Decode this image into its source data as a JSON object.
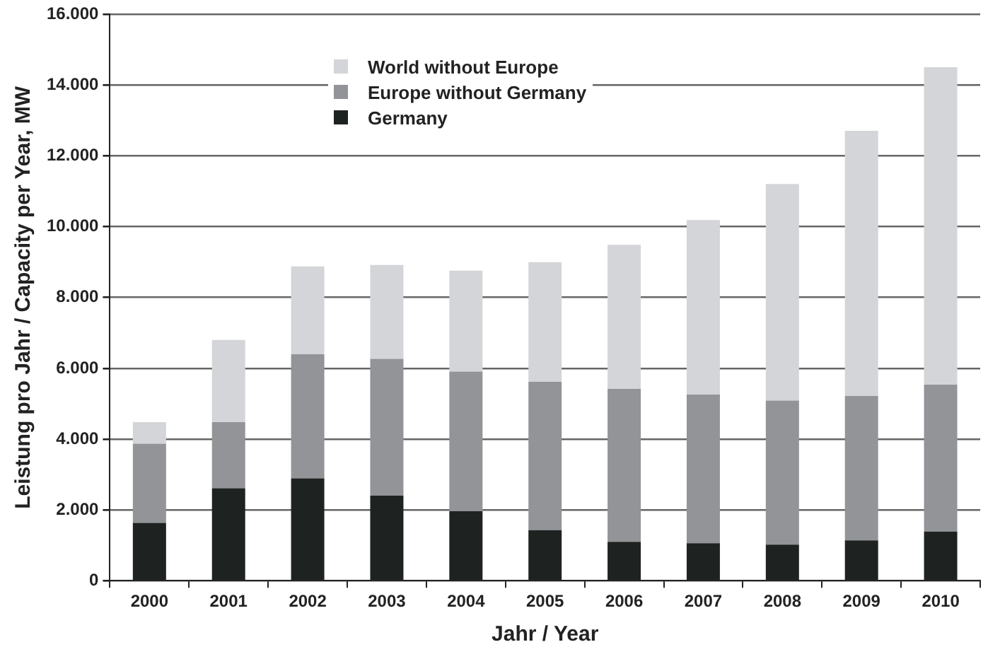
{
  "chart_data": {
    "type": "bar",
    "stacked": true,
    "xlabel": "Jahr / Year",
    "ylabel": "Leistung pro Jahr / Capacity per Year, MW",
    "categories": [
      "2000",
      "2001",
      "2002",
      "2003",
      "2004",
      "2005",
      "2006",
      "2007",
      "2008",
      "2009",
      "2010"
    ],
    "series": [
      {
        "name": "Germany",
        "color": "#1e2321",
        "values": [
          1630,
          2610,
          2890,
          2400,
          1960,
          1430,
          1100,
          1060,
          1020,
          1140,
          1390
        ]
      },
      {
        "name": "Europe without Germany",
        "color": "#939497",
        "values": [
          2240,
          1870,
          3510,
          3870,
          3950,
          4190,
          4320,
          4200,
          4070,
          4080,
          4150
        ]
      },
      {
        "name": "World without Europe",
        "color": "#d4d5d8",
        "values": [
          610,
          2320,
          2480,
          2650,
          2850,
          3380,
          4070,
          4930,
          6120,
          7490,
          8970
        ]
      }
    ],
    "ylim": [
      0,
      16000
    ],
    "yticks": [
      0,
      {
        "value": 2000,
        "label": "2.000"
      },
      {
        "value": 4000,
        "label": "4.000"
      },
      {
        "value": 6000,
        "label": "6.000"
      },
      {
        "value": 8000,
        "label": "8.000"
      },
      {
        "value": 10000,
        "label": "10.000"
      },
      {
        "value": 12000,
        "label": "12.000"
      },
      {
        "value": 14000,
        "label": "14.000"
      },
      {
        "value": 16000,
        "label": "16.000"
      }
    ],
    "grid": "y",
    "legend": "top left"
  }
}
